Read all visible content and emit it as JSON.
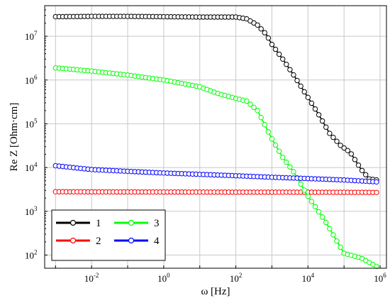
{
  "chart_data": {
    "type": "line",
    "xlabel": "ω [Hz]",
    "ylabel": "Re Z [Ohm·cm]",
    "xscale": "log",
    "yscale": "log",
    "xlim": [
      0.0005,
      1500000
    ],
    "ylim": [
      50,
      50000000
    ],
    "grid": true,
    "legend": "bottom-left",
    "x_ticks": [
      {
        "base": "10",
        "exp": "-2",
        "value": 0.01
      },
      {
        "base": "10",
        "exp": "0",
        "value": 1
      },
      {
        "base": "10",
        "exp": "2",
        "value": 100
      },
      {
        "base": "10",
        "exp": "4",
        "value": 10000
      },
      {
        "base": "10",
        "exp": "6",
        "value": 1000000
      }
    ],
    "y_ticks": [
      {
        "base": "10",
        "exp": "2",
        "value": 100
      },
      {
        "base": "10",
        "exp": "3",
        "value": 1000
      },
      {
        "base": "10",
        "exp": "4",
        "value": 10000
      },
      {
        "base": "10",
        "exp": "5",
        "value": 100000
      },
      {
        "base": "10",
        "exp": "6",
        "value": 1000000
      },
      {
        "base": "10",
        "exp": "7",
        "value": 10000000
      }
    ],
    "series": [
      {
        "name": "1",
        "color": "#000000",
        "points": [
          [
            0.001,
            28000000
          ],
          [
            0.01,
            28500000
          ],
          [
            0.1,
            28500000
          ],
          [
            1,
            28000000
          ],
          [
            10,
            27500000
          ],
          [
            100,
            27500000
          ],
          [
            200,
            25000000
          ],
          [
            400,
            18000000
          ],
          [
            700,
            11000000
          ],
          [
            1000,
            6500000
          ],
          [
            2000,
            3000000
          ],
          [
            4000,
            1300000
          ],
          [
            10000,
            400000
          ],
          [
            20000,
            160000
          ],
          [
            40000,
            60000
          ],
          [
            80000,
            32000
          ],
          [
            150000,
            22000
          ],
          [
            300000,
            9000
          ],
          [
            500000,
            5500
          ],
          [
            800000,
            5200
          ]
        ]
      },
      {
        "name": "2",
        "color": "#ff0000",
        "points": [
          [
            0.001,
            2800
          ],
          [
            0.01,
            2780
          ],
          [
            0.1,
            2770
          ],
          [
            1,
            2760
          ],
          [
            10,
            2750
          ],
          [
            100,
            2740
          ],
          [
            1000,
            2740
          ],
          [
            10000,
            2730
          ],
          [
            100000,
            2720
          ],
          [
            800000,
            2700
          ]
        ]
      },
      {
        "name": "3",
        "color": "#00ff00",
        "points": [
          [
            0.001,
            1900000
          ],
          [
            0.003,
            1750000
          ],
          [
            0.01,
            1600000
          ],
          [
            0.1,
            1300000
          ],
          [
            1,
            1000000
          ],
          [
            10,
            700000
          ],
          [
            30,
            500000
          ],
          [
            100,
            380000
          ],
          [
            200,
            330000
          ],
          [
            400,
            200000
          ],
          [
            1000,
            45000
          ],
          [
            2000,
            17000
          ],
          [
            4000,
            8000
          ],
          [
            10000,
            2200
          ],
          [
            30000,
            600
          ],
          [
            70000,
            180
          ],
          [
            100000,
            110
          ],
          [
            300000,
            85
          ],
          [
            800000,
            55
          ]
        ]
      },
      {
        "name": "4",
        "color": "#0000ff",
        "points": [
          [
            0.001,
            11000
          ],
          [
            0.003,
            10000
          ],
          [
            0.01,
            9000
          ],
          [
            0.1,
            8200
          ],
          [
            1,
            7500
          ],
          [
            10,
            7000
          ],
          [
            100,
            6500
          ],
          [
            1000,
            6000
          ],
          [
            10000,
            5600
          ],
          [
            100000,
            5200
          ],
          [
            800000,
            4700
          ]
        ]
      }
    ]
  }
}
